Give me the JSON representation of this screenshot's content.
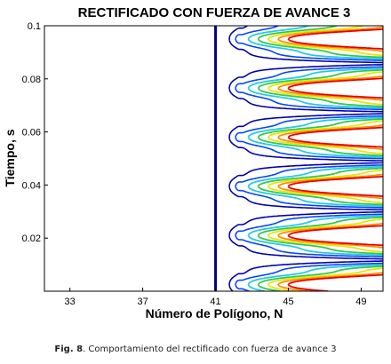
{
  "chart_data": {
    "type": "contour",
    "title": "RECTIFICADO CON FUERZA DE AVANCE 3",
    "xlabel": "Número de Polígono,  N",
    "ylabel": "Tiempo, s",
    "xlim": [
      31.6,
      50.2
    ],
    "ylim": [
      0,
      0.1
    ],
    "xticks": [
      33,
      37,
      41,
      45,
      49
    ],
    "yticks": [
      0.02,
      0.04,
      0.06,
      0.08,
      0.1
    ],
    "ytick_labels": [
      "0.02",
      "0.04",
      "0.06",
      "0.08",
      "0.1"
    ],
    "boundary_x": 41,
    "band_period": 0.0185,
    "band_centers": [
      0.0025,
      0.021,
      0.0395,
      0.058,
      0.0765,
      0.095
    ],
    "contour_levels": [
      {
        "level": 1,
        "color": "#0000a8"
      },
      {
        "level": 2,
        "color": "#0044ff"
      },
      {
        "level": 3,
        "color": "#22c8e8"
      },
      {
        "level": 4,
        "color": "#2ec84a"
      },
      {
        "level": 5,
        "color": "#e6e600"
      },
      {
        "level": 6,
        "color": "#ff8a00"
      },
      {
        "level": 7,
        "color": "#e80000"
      }
    ],
    "grid": false,
    "legend": "none"
  },
  "caption": {
    "label": "Fig. 8",
    "text": ". Comportamiento del rectificado con fuerza de avance 3"
  }
}
